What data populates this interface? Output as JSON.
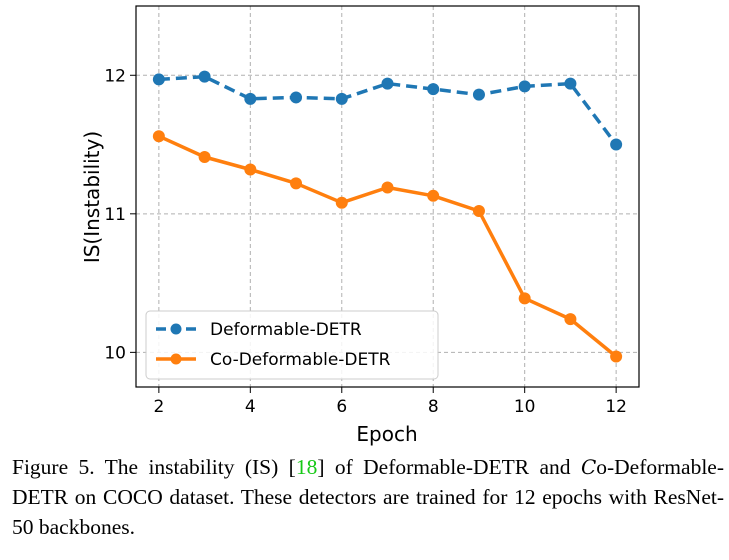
{
  "chart_data": {
    "type": "line",
    "xlabel": "Epoch",
    "ylabel": "IS(Instability)",
    "xlim": [
      1.5,
      12.5
    ],
    "ylim": [
      9.75,
      12.5
    ],
    "xticks": [
      "2",
      "4",
      "6",
      "8",
      "10",
      "12"
    ],
    "yticks": [
      "10",
      "11",
      "12"
    ],
    "grid": true,
    "legend_position": "lower-left",
    "x": [
      2,
      3,
      4,
      5,
      6,
      7,
      8,
      9,
      10,
      11,
      12
    ],
    "series": [
      {
        "name": "Deformable-DETR",
        "color": "#1f77b4",
        "style": "dashed",
        "values": [
          11.97,
          11.99,
          11.83,
          11.84,
          11.83,
          11.94,
          11.9,
          11.86,
          11.92,
          11.94,
          11.5
        ]
      },
      {
        "name": "Co-Deformable-DETR",
        "color": "#ff7f0e",
        "style": "solid",
        "values": [
          11.56,
          11.41,
          11.32,
          11.22,
          11.08,
          11.19,
          11.13,
          11.02,
          10.39,
          10.24,
          9.97
        ]
      }
    ]
  },
  "caption": {
    "prefix": "Figure 5. The instability (IS) [",
    "ref": "18",
    "mid": "] of Deformable-DETR and ",
    "co": "C",
    "suffix": "o-Deformable-DETR on COCO dataset. These detectors are trained for 12 epochs with ResNet-50 backbones."
  }
}
